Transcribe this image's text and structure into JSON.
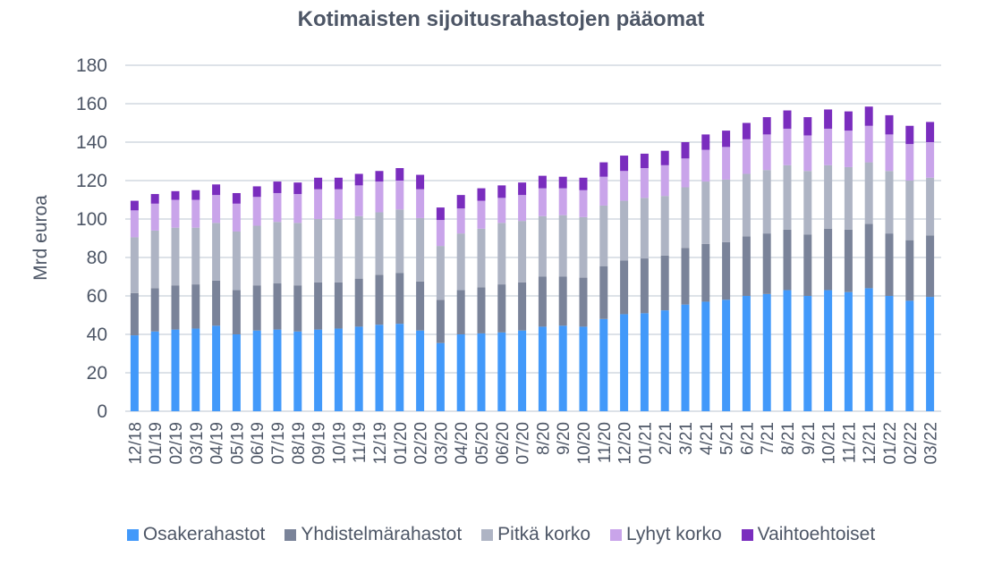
{
  "chart_data": {
    "type": "bar",
    "stacked": true,
    "title": "Kotimaisten sijoitusrahastojen pääomat",
    "xlabel": "",
    "ylabel": "Mrd euroa",
    "ylim": [
      0,
      180
    ],
    "yticks": [
      0,
      20,
      40,
      60,
      80,
      100,
      120,
      140,
      160,
      180
    ],
    "grid": true,
    "legend_position": "bottom",
    "categories": [
      "12/18",
      "01/19",
      "02/19",
      "03/19",
      "04/19",
      "05/19",
      "06/19",
      "07/19",
      "08/19",
      "09/19",
      "10/19",
      "11/19",
      "12/19",
      "01/20",
      "02/20",
      "03/20",
      "04/20",
      "05/20",
      "06/20",
      "07/20",
      "8/20",
      "9/20",
      "10/20",
      "11/20",
      "12/20",
      "01/21",
      "2/21",
      "3/21",
      "4/21",
      "5/21",
      "6/21",
      "7/21",
      "8/21",
      "9/21",
      "10/21",
      "11/21",
      "12/21",
      "01/22",
      "02/22",
      "03/22"
    ],
    "series": [
      {
        "name": "Osakerahastot",
        "color": "#4299fa",
        "values": [
          39.5,
          41.5,
          42.5,
          43,
          44.5,
          40,
          42,
          42.5,
          41.5,
          42.5,
          43,
          44,
          45,
          45.5,
          42,
          35.5,
          40,
          40.5,
          41,
          42,
          44,
          44.5,
          44,
          48,
          50.5,
          51,
          52.5,
          55.5,
          57,
          58,
          60,
          61,
          63,
          60,
          63,
          62,
          64,
          60,
          57.5,
          59.5
        ]
      },
      {
        "name": "Yhdistelmärahastot",
        "color": "#7a8399",
        "values": [
          22,
          22.5,
          23,
          23,
          23.5,
          23,
          23.5,
          24,
          24,
          24.5,
          24,
          25,
          26,
          26.5,
          25.5,
          22.5,
          23,
          24,
          25,
          25,
          26,
          25.5,
          25.5,
          27.5,
          28,
          28.5,
          28.5,
          29.5,
          30,
          30,
          31,
          31.5,
          31.5,
          32,
          32,
          32.5,
          33.5,
          32.5,
          31.5,
          32
        ]
      },
      {
        "name": "Pitkä korko",
        "color": "#aeb4c4",
        "values": [
          29,
          30,
          30,
          29.5,
          30,
          30.5,
          31,
          32,
          32.5,
          33,
          33,
          32.5,
          32.5,
          33,
          33,
          28,
          29.5,
          30.5,
          32,
          32,
          31.5,
          32,
          31.5,
          31.5,
          31,
          31.5,
          31,
          31.5,
          32.5,
          32.5,
          32.5,
          33,
          33.5,
          33,
          33,
          32.5,
          32,
          32.5,
          31,
          30
        ]
      },
      {
        "name": "Lyhyt korko",
        "color": "#c9a4ea",
        "values": [
          14,
          14,
          14.5,
          14.5,
          14.5,
          14.5,
          15,
          15,
          15,
          15.5,
          15.5,
          16,
          16,
          15,
          15,
          13.5,
          13,
          14.5,
          13,
          13.5,
          14.5,
          14,
          14,
          15,
          15.5,
          15.5,
          16,
          15,
          16.5,
          17,
          18,
          18.5,
          19,
          18.5,
          19,
          19,
          19,
          19,
          19,
          18.5
        ]
      },
      {
        "name": "Vaihtoehtoiset",
        "color": "#7a2dbe",
        "values": [
          5,
          5,
          4.5,
          5,
          5.5,
          5.5,
          5.5,
          6,
          6,
          6,
          6,
          6,
          5.5,
          6.5,
          7.5,
          6.5,
          7,
          6.5,
          6.5,
          6.5,
          6.5,
          6,
          6.5,
          7.5,
          8,
          7.5,
          7.5,
          8.5,
          8,
          8.5,
          8.5,
          9,
          9.5,
          9.5,
          10,
          10,
          10,
          10,
          9.5,
          10.5
        ]
      }
    ]
  }
}
